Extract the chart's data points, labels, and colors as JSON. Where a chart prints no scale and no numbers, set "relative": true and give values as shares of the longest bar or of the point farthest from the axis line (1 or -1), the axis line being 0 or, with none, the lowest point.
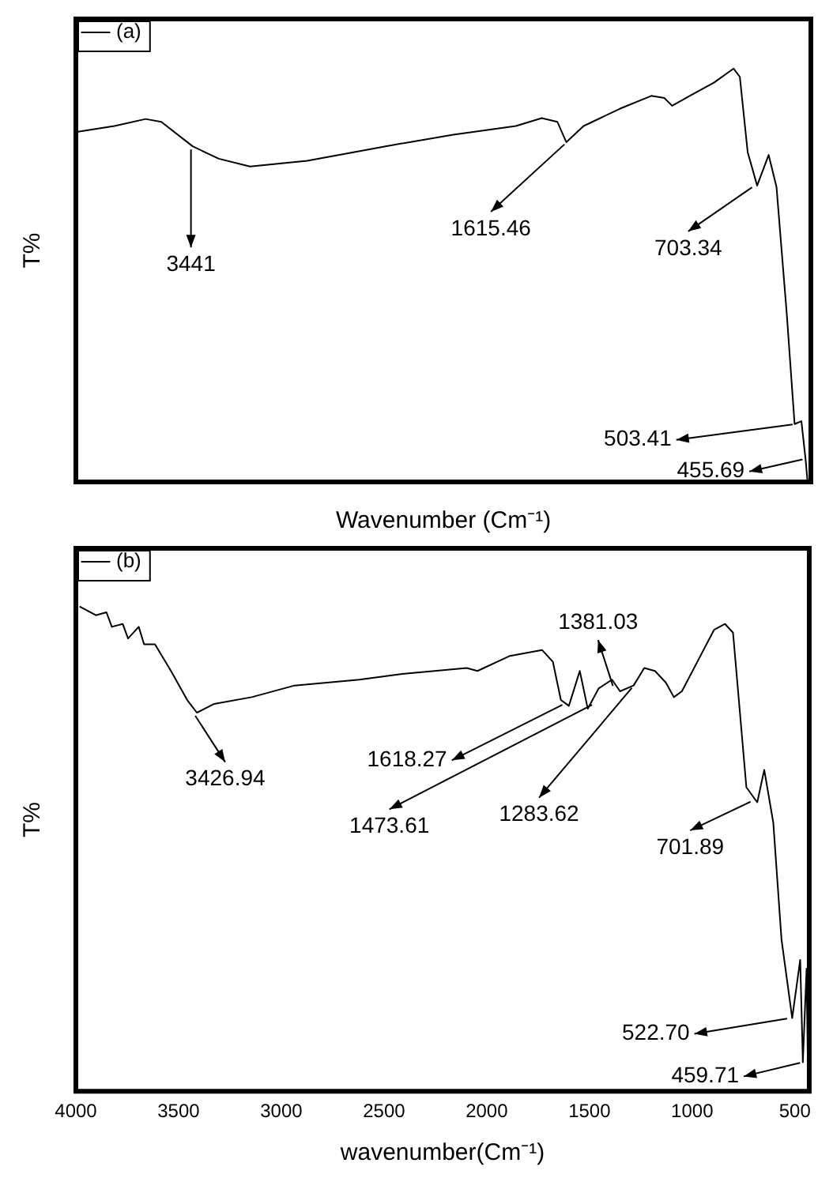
{
  "chart_data": [
    {
      "type": "line",
      "xlabel": "Wavenumber (Cm⁻¹)",
      "ylabel": "T%",
      "relative": true,
      "xlim": [
        4000,
        430
      ],
      "tick_labels": false,
      "grid": false,
      "legend": "top left",
      "marker": "none",
      "line_style": "solid",
      "series": [
        {
          "name": "(a)",
          "color": "#000000",
          "x": [
            3990,
            3813,
            3661,
            3585,
            3433,
            3306,
            3154,
            2876,
            2496,
            2167,
            1863,
            1737,
            1661,
            1618,
            1534,
            1357,
            1205,
            1142,
            1104,
            1003,
            901,
            805,
            775,
            737,
            691,
            635,
            597,
            547,
            509,
            476,
            456,
            446
          ],
          "values": [
            0.847,
            0.861,
            0.878,
            0.871,
            0.812,
            0.782,
            0.763,
            0.777,
            0.812,
            0.84,
            0.861,
            0.88,
            0.871,
            0.822,
            0.861,
            0.903,
            0.934,
            0.929,
            0.91,
            0.938,
            0.966,
            1.0,
            0.98,
            0.798,
            0.717,
            0.791,
            0.714,
            0.406,
            0.14,
            0.147,
            0.056,
            0
          ]
        }
      ],
      "annotations": [
        {
          "text": "3441",
          "x": 3441,
          "y": 0.812
        },
        {
          "text": "1615.46",
          "x": 1615.46,
          "y": 0.822
        },
        {
          "text": "703.34",
          "x": 703.34,
          "y": 0.717
        },
        {
          "text": "503.41",
          "x": 503.41,
          "y": 0.14
        },
        {
          "text": "455.69",
          "x": 455.69,
          "y": 0.056
        }
      ]
    },
    {
      "type": "line",
      "xlabel": "wavenumber(Cm⁻¹)",
      "ylabel": "T%",
      "relative": true,
      "xlim": [
        4000,
        430
      ],
      "xticks": [
        4000,
        3500,
        3000,
        2500,
        2000,
        1500,
        1000,
        500
      ],
      "tick_labels": "x",
      "grid": false,
      "legend": "top left",
      "marker": "none",
      "line_style": "solid",
      "series": [
        {
          "name": "(b)",
          "color": "#000000",
          "x": [
            3982,
            3903,
            3851,
            3825,
            3772,
            3746,
            3694,
            3668,
            3615,
            3537,
            3458,
            3411,
            3327,
            3144,
            2935,
            2620,
            2411,
            2097,
            2045,
            1887,
            1809,
            1730,
            1678,
            1639,
            1600,
            1547,
            1508,
            1455,
            1390,
            1351,
            1285,
            1233,
            1181,
            1128,
            1089,
            1050,
            945,
            893,
            840,
            801,
            736,
            683,
            649,
            605,
            565,
            513,
            474,
            461,
            443,
            435
          ],
          "values": [
            1.0,
            0.982,
            0.988,
            0.958,
            0.964,
            0.934,
            0.958,
            0.922,
            0.922,
            0.867,
            0.807,
            0.781,
            0.799,
            0.813,
            0.837,
            0.849,
            0.861,
            0.873,
            0.867,
            0.898,
            0.904,
            0.91,
            0.886,
            0.807,
            0.795,
            0.867,
            0.789,
            0.831,
            0.849,
            0.825,
            0.837,
            0.873,
            0.867,
            0.843,
            0.813,
            0.825,
            0.91,
            0.952,
            0.964,
            0.946,
            0.627,
            0.596,
            0.663,
            0.554,
            0.313,
            0.151,
            0.271,
            0.06,
            0.253,
            0
          ]
        }
      ],
      "annotations": [
        {
          "text": "3426.94",
          "x": 3426.94,
          "y": 0.78
        },
        {
          "text": "1618.27",
          "x": 1618.27,
          "y": 0.8
        },
        {
          "text": "1473.61",
          "x": 1473.61,
          "y": 0.8
        },
        {
          "text": "1381.03",
          "x": 1381.03,
          "y": 0.83
        },
        {
          "text": "1283.62",
          "x": 1283.62,
          "y": 0.837
        },
        {
          "text": "701.89",
          "x": 701.89,
          "y": 0.6
        },
        {
          "text": "522.70",
          "x": 522.7,
          "y": 0.151
        },
        {
          "text": "459.71",
          "x": 459.71,
          "y": 0.06
        }
      ]
    }
  ]
}
